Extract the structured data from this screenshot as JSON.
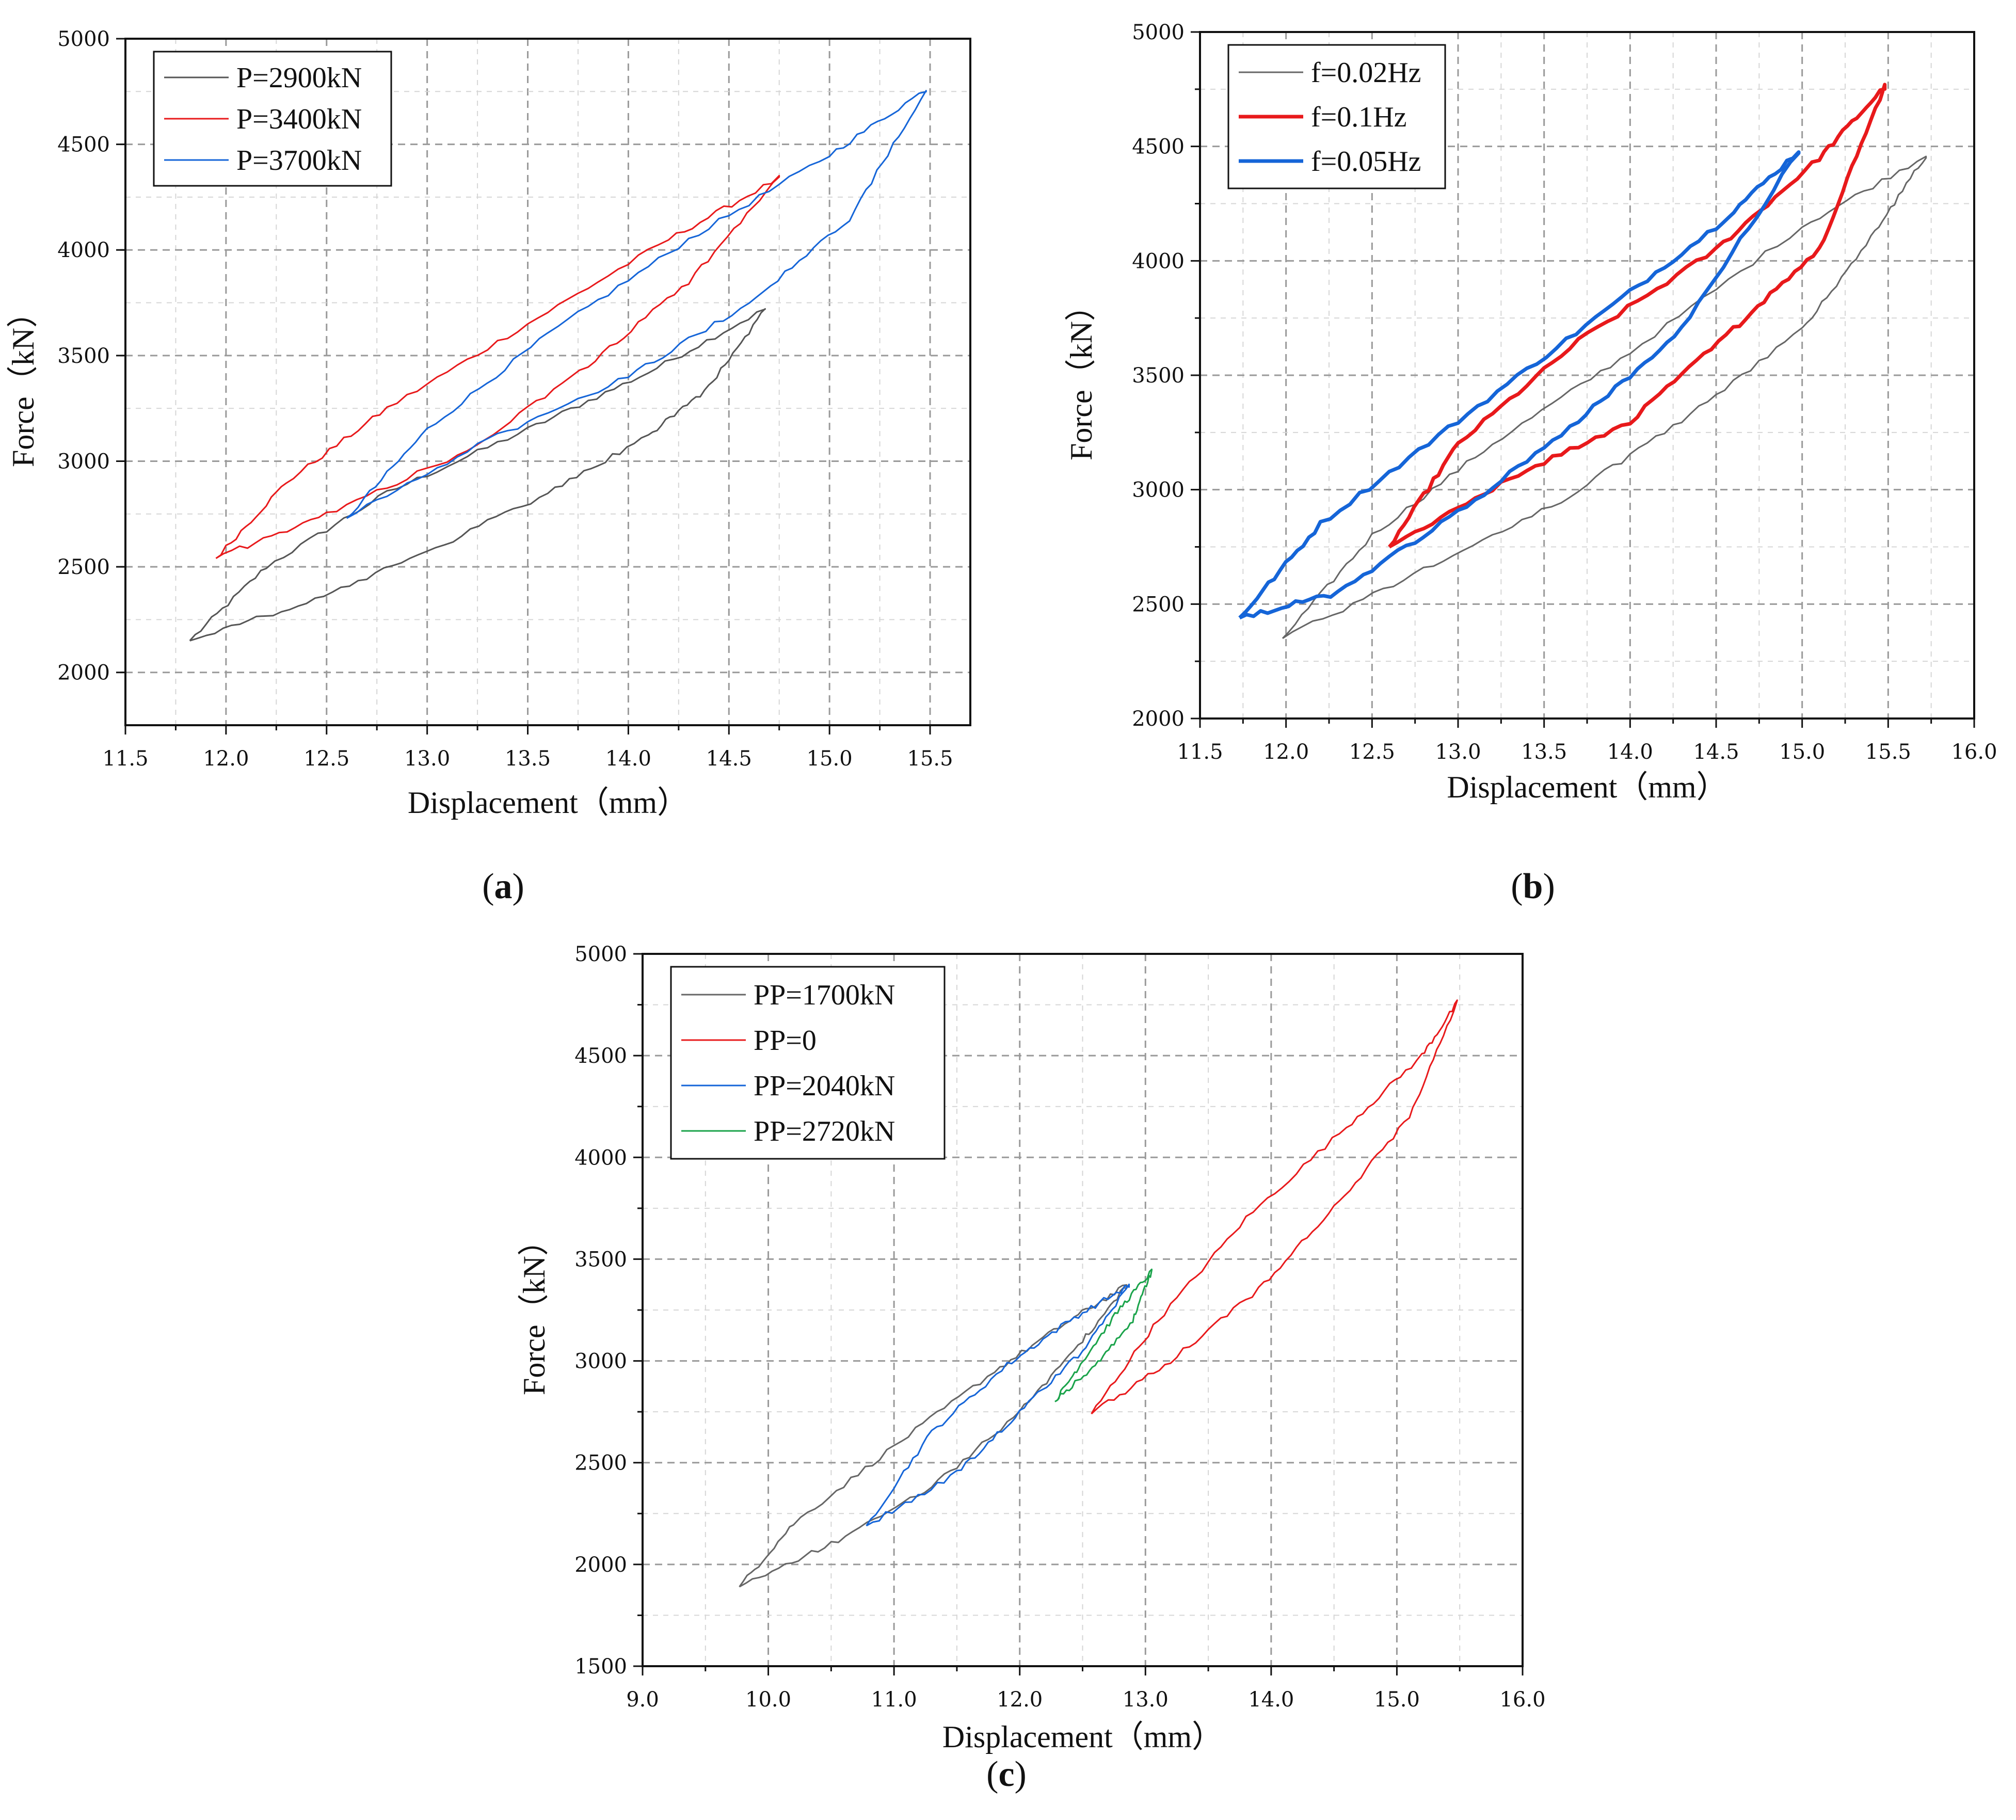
{
  "chart_data": [
    {
      "id": "a",
      "type": "line",
      "panel_label": "a",
      "xlabel": "Displacement（mm）",
      "ylabel": "Force（kN）",
      "xlim": [
        11.5,
        15.7
      ],
      "ylim": [
        1750,
        5000
      ],
      "xticks": [
        11.5,
        12.0,
        12.5,
        13.0,
        13.5,
        14.0,
        14.5,
        15.0,
        15.5
      ],
      "xtick_labels": [
        "11.5",
        "12.0",
        "12.5",
        "13.0",
        "13.5",
        "14.0",
        "14.5",
        "15.0",
        "15.5"
      ],
      "yticks": [
        2000,
        2500,
        3000,
        3500,
        4000,
        4500,
        5000
      ],
      "ytick_labels": [
        "2000",
        "2500",
        "3000",
        "3500",
        "4000",
        "4500",
        "5000"
      ],
      "legend_position": "top-left",
      "series": [
        {
          "name": "P=2900kN",
          "color": "#555555",
          "upper": [
            [
              11.82,
              2150
            ],
            [
              12.2,
              2500
            ],
            [
              12.8,
              2850
            ],
            [
              13.5,
              3150
            ],
            [
              14.1,
              3420
            ],
            [
              14.68,
              3720
            ]
          ],
          "lower": [
            [
              11.82,
              2150
            ],
            [
              12.4,
              2330
            ],
            [
              13.0,
              2570
            ],
            [
              13.6,
              2850
            ],
            [
              14.1,
              3120
            ],
            [
              14.4,
              3350
            ],
            [
              14.68,
              3720
            ]
          ]
        },
        {
          "name": "P=3400kN",
          "color": "#e8191b",
          "upper": [
            [
              11.95,
              2540
            ],
            [
              12.3,
              2900
            ],
            [
              12.8,
              3250
            ],
            [
              13.5,
              3650
            ],
            [
              14.2,
              4050
            ],
            [
              14.75,
              4340
            ]
          ],
          "lower": [
            [
              11.95,
              2540
            ],
            [
              12.5,
              2750
            ],
            [
              13.2,
              3050
            ],
            [
              13.8,
              3450
            ],
            [
              14.3,
              3850
            ],
            [
              14.75,
              4340
            ]
          ]
        },
        {
          "name": "P=3700kN",
          "color": "#1565d8",
          "upper": [
            [
              12.6,
              2730
            ],
            [
              13.0,
              3150
            ],
            [
              13.6,
              3600
            ],
            [
              14.3,
              4050
            ],
            [
              15.0,
              4450
            ],
            [
              15.48,
              4760
            ]
          ],
          "lower": [
            [
              12.6,
              2730
            ],
            [
              13.3,
              3100
            ],
            [
              14.0,
              3400
            ],
            [
              14.6,
              3750
            ],
            [
              15.1,
              4150
            ],
            [
              15.48,
              4760
            ]
          ]
        }
      ]
    },
    {
      "id": "b",
      "type": "line",
      "panel_label": "b",
      "xlabel": "Displacement（mm）",
      "ylabel": "Force（kN）",
      "xlim": [
        11.5,
        16.0
      ],
      "ylim": [
        2000,
        5000
      ],
      "xticks": [
        11.5,
        12.0,
        12.5,
        13.0,
        13.5,
        14.0,
        14.5,
        15.0,
        15.5,
        16.0
      ],
      "xtick_labels": [
        "11.5",
        "12.0",
        "12.5",
        "13.0",
        "13.5",
        "14.0",
        "14.5",
        "15.0",
        "15.5",
        "16.0"
      ],
      "yticks": [
        2000,
        2500,
        3000,
        3500,
        4000,
        4500,
        5000
      ],
      "ytick_labels": [
        "2000",
        "2500",
        "3000",
        "3500",
        "4000",
        "4500",
        "5000"
      ],
      "legend_position": "top-left",
      "series": [
        {
          "name": "f=0.02Hz",
          "color": "#666666",
          "upper": [
            [
              11.98,
              2350
            ],
            [
              12.5,
              2800
            ],
            [
              13.2,
              3200
            ],
            [
              14.0,
              3600
            ],
            [
              15.0,
              4150
            ],
            [
              15.72,
              4460
            ]
          ],
          "lower": [
            [
              11.98,
              2350
            ],
            [
              12.8,
              2650
            ],
            [
              13.6,
              2950
            ],
            [
              14.3,
              3300
            ],
            [
              15.0,
              3700
            ],
            [
              15.4,
              4100
            ],
            [
              15.72,
              4460
            ]
          ]
        },
        {
          "name": "f=0.1Hz",
          "color": "#e8191b",
          "upper": [
            [
              12.6,
              2750
            ],
            [
              13.0,
              3200
            ],
            [
              13.7,
              3650
            ],
            [
              14.5,
              4050
            ],
            [
              15.1,
              4450
            ],
            [
              15.48,
              4760
            ]
          ],
          "lower": [
            [
              12.6,
              2750
            ],
            [
              13.3,
              3050
            ],
            [
              14.0,
              3300
            ],
            [
              14.6,
              3700
            ],
            [
              15.1,
              4050
            ],
            [
              15.48,
              4760
            ]
          ]
        },
        {
          "name": "f=0.05Hz",
          "color": "#1565d8",
          "upper": [
            [
              11.73,
              2440
            ],
            [
              12.2,
              2850
            ],
            [
              13.0,
              3300
            ],
            [
              13.8,
              3750
            ],
            [
              14.5,
              4150
            ],
            [
              14.98,
              4480
            ]
          ],
          "lower": [
            [
              11.73,
              2440
            ],
            [
              12.3,
              2550
            ],
            [
              13.0,
              2900
            ],
            [
              13.7,
              3300
            ],
            [
              14.3,
              3700
            ],
            [
              14.98,
              4480
            ]
          ]
        }
      ]
    },
    {
      "id": "c",
      "type": "line",
      "panel_label": "c",
      "xlabel": "Displacement（mm）",
      "ylabel": "Force（kN）",
      "xlim": [
        9.0,
        16.0
      ],
      "ylim": [
        1500,
        5000
      ],
      "xticks": [
        9.0,
        10.0,
        11.0,
        12.0,
        13.0,
        14.0,
        15.0,
        16.0
      ],
      "xtick_labels": [
        "9.0",
        "10.0",
        "11.0",
        "12.0",
        "13.0",
        "14.0",
        "15.0",
        "16.0"
      ],
      "yticks": [
        1500,
        2000,
        2500,
        3000,
        3500,
        4000,
        4500,
        5000
      ],
      "ytick_labels": [
        "1500",
        "2000",
        "2500",
        "3000",
        "3500",
        "4000",
        "4500",
        "5000"
      ],
      "legend_position": "top-left",
      "series": [
        {
          "name": "PP=1700kN",
          "color": "#666666",
          "upper": [
            [
              9.77,
              1890
            ],
            [
              10.2,
              2200
            ],
            [
              11.0,
              2580
            ],
            [
              11.8,
              2950
            ],
            [
              12.4,
              3200
            ],
            [
              12.85,
              3370
            ]
          ],
          "lower": [
            [
              9.77,
              1890
            ],
            [
              10.5,
              2100
            ],
            [
              11.3,
              2380
            ],
            [
              12.0,
              2750
            ],
            [
              12.5,
              3100
            ],
            [
              12.85,
              3370
            ]
          ]
        },
        {
          "name": "PP=0",
          "color": "#e8191b",
          "upper": [
            [
              12.57,
              2740
            ],
            [
              13.1,
              3200
            ],
            [
              13.8,
              3700
            ],
            [
              14.6,
              4150
            ],
            [
              15.2,
              4500
            ],
            [
              15.48,
              4760
            ]
          ],
          "lower": [
            [
              12.57,
              2740
            ],
            [
              13.2,
              3000
            ],
            [
              13.9,
              3350
            ],
            [
              14.5,
              3750
            ],
            [
              15.1,
              4200
            ],
            [
              15.48,
              4760
            ]
          ]
        },
        {
          "name": "PP=2040kN",
          "color": "#1565d8",
          "upper": [
            [
              10.78,
              2190
            ],
            [
              11.3,
              2650
            ],
            [
              11.9,
              2980
            ],
            [
              12.4,
              3200
            ],
            [
              12.87,
              3370
            ]
          ],
          "lower": [
            [
              10.78,
              2190
            ],
            [
              11.5,
              2450
            ],
            [
              12.0,
              2750
            ],
            [
              12.5,
              3050
            ],
            [
              12.87,
              3370
            ]
          ]
        },
        {
          "name": "PP=2720kN",
          "color": "#1aa34a",
          "upper": [
            [
              12.28,
              2800
            ],
            [
              12.5,
              3000
            ],
            [
              12.8,
              3260
            ],
            [
              13.05,
              3440
            ]
          ],
          "lower": [
            [
              12.28,
              2800
            ],
            [
              12.6,
              2980
            ],
            [
              12.9,
              3200
            ],
            [
              13.05,
              3440
            ]
          ]
        }
      ]
    }
  ]
}
